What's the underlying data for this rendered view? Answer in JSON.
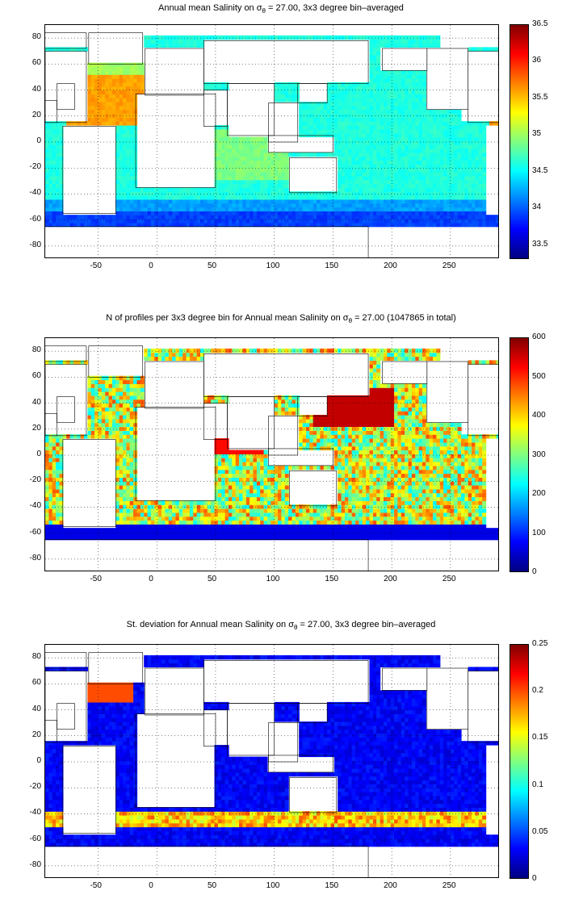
{
  "chart_data": [
    {
      "type": "heatmap",
      "title_parts": [
        "Annual mean Salinity on ",
        "σ",
        "θ",
        " = 27.00, 3x3 degree bin–averaged"
      ],
      "x_ticks": [
        "-50",
        "0",
        "50",
        "100",
        "150",
        "200",
        "250"
      ],
      "y_ticks": [
        "80",
        "60",
        "40",
        "20",
        "0",
        "-20",
        "-40",
        "-60",
        "-80"
      ],
      "xlim": [
        -95,
        292
      ],
      "ylim": [
        -90,
        90
      ],
      "colorbar_ticks": [
        "36.5",
        "36",
        "35.5",
        "35",
        "34.5",
        "34",
        "33.5"
      ],
      "colorbar_range": [
        33.3,
        36.5
      ],
      "colormap": "jet",
      "grid": "dotted"
    },
    {
      "type": "heatmap",
      "title_parts": [
        "N of profiles per 3x3 degree bin for Annual mean Salinity on ",
        "σ",
        "θ",
        " = 27.00 (1047865 in total)"
      ],
      "x_ticks": [
        "-50",
        "0",
        "50",
        "100",
        "150",
        "200",
        "250"
      ],
      "y_ticks": [
        "80",
        "60",
        "40",
        "20",
        "0",
        "-20",
        "-40",
        "-60",
        "-80"
      ],
      "xlim": [
        -95,
        292
      ],
      "ylim": [
        -90,
        90
      ],
      "colorbar_ticks": [
        "600",
        "500",
        "400",
        "300",
        "200",
        "100",
        "0"
      ],
      "colorbar_range": [
        0,
        600
      ],
      "colormap": "jet",
      "grid": "dotted"
    },
    {
      "type": "heatmap",
      "title_parts": [
        "St. deviation for Annual mean Salinity on ",
        "σ",
        "θ",
        " = 27.00, 3x3 degree bin–averaged"
      ],
      "x_ticks": [
        "-50",
        "0",
        "50",
        "100",
        "150",
        "200",
        "250"
      ],
      "y_ticks": [
        "80",
        "60",
        "40",
        "20",
        "0",
        "-20",
        "-40",
        "-60",
        "-80"
      ],
      "xlim": [
        -95,
        292
      ],
      "ylim": [
        -90,
        90
      ],
      "colorbar_ticks": [
        "0.25",
        "0.2",
        "0.15",
        "0.1",
        "0.05",
        "0"
      ],
      "colorbar_range": [
        0,
        0.25
      ],
      "colormap": "jet",
      "grid": "dotted"
    }
  ]
}
